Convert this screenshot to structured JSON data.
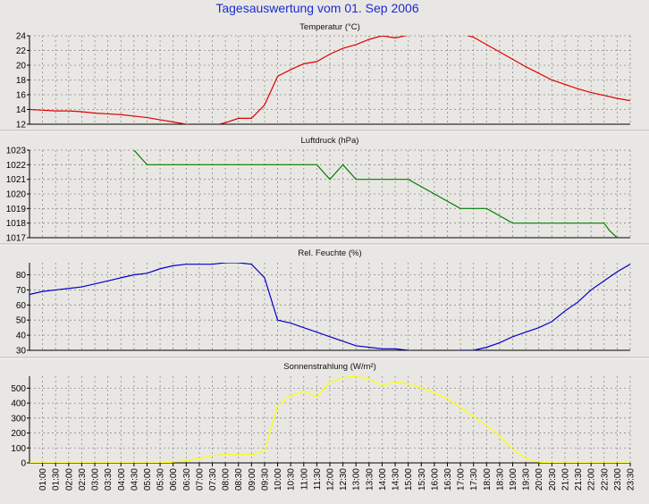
{
  "title": "Tagesauswertung vom 01. Sep 2006",
  "chart_data": [
    {
      "type": "line",
      "title": "Temperatur (°C)",
      "color": "#dd0000",
      "ylim": [
        12,
        24
      ],
      "yticks": [
        12,
        14,
        16,
        18,
        20,
        22,
        24
      ],
      "x": [
        0.0,
        0.5,
        1.0,
        1.5,
        2.0,
        2.5,
        3.0,
        3.5,
        4.0,
        4.5,
        5.0,
        5.5,
        6.0,
        6.5,
        7.0,
        7.5,
        8.0,
        8.5,
        9.0,
        9.5,
        10.0,
        10.5,
        11.0,
        11.5,
        12.0,
        12.5,
        13.0,
        13.5,
        14.0,
        14.5,
        15.0,
        15.5,
        16.0,
        16.5,
        17.0,
        17.5,
        18.0,
        18.5,
        19.0,
        19.5,
        20.0,
        20.5,
        21.0,
        21.5,
        22.0,
        22.5,
        23.0,
        23.5
      ],
      "values": [
        14.1,
        14.0,
        13.9,
        13.8,
        13.8,
        13.7,
        13.5,
        13.4,
        13.3,
        13.1,
        12.9,
        12.6,
        12.3,
        12.0,
        11.8,
        11.8,
        12.2,
        12.8,
        12.8,
        14.6,
        18.5,
        19.4,
        20.2,
        20.5,
        21.5,
        22.3,
        22.8,
        23.5,
        24.0,
        23.7,
        24.1,
        24.6,
        24.3,
        24.3,
        24.3,
        23.8,
        22.8,
        21.8,
        20.8,
        19.8,
        18.9,
        18.0,
        17.4,
        16.8,
        16.3,
        15.9,
        15.5,
        15.2
      ]
    },
    {
      "type": "line",
      "title": "Luftdruck (hPa)",
      "color": "#008000",
      "ylim": [
        1017,
        1023
      ],
      "yticks": [
        1017,
        1018,
        1019,
        1020,
        1021,
        1022,
        1023
      ],
      "x": [
        4.5,
        5.0,
        6.0,
        7.0,
        8.0,
        9.0,
        10.0,
        11.0,
        11.5,
        12.0,
        12.5,
        13.0,
        13.5,
        14.0,
        14.5,
        15.0,
        16.0,
        17.0,
        17.5,
        18.0,
        19.0,
        20.0,
        21.0,
        22.0,
        22.5,
        22.7,
        23.0
      ],
      "values": [
        1023,
        1022,
        1022,
        1022,
        1022,
        1022,
        1022,
        1022,
        1022,
        1021,
        1022,
        1021,
        1021,
        1021,
        1021,
        1021,
        1020,
        1019,
        1019,
        1019,
        1018,
        1018,
        1018,
        1018,
        1018,
        1017.5,
        1017
      ]
    },
    {
      "type": "line",
      "title": "Rel. Feuchte (%)",
      "color": "#0000cc",
      "ylim": [
        30,
        88
      ],
      "yticks": [
        30,
        40,
        50,
        60,
        70,
        80
      ],
      "x": [
        0.0,
        0.5,
        1.0,
        1.5,
        2.0,
        2.5,
        3.0,
        3.5,
        4.0,
        4.5,
        5.0,
        5.5,
        6.0,
        6.5,
        7.0,
        7.5,
        8.0,
        8.5,
        9.0,
        9.5,
        10.0,
        10.5,
        11.0,
        11.5,
        12.0,
        12.5,
        13.0,
        13.5,
        14.0,
        14.5,
        15.0,
        15.5,
        16.0,
        16.5,
        17.0,
        17.5,
        18.0,
        18.5,
        19.0,
        19.5,
        20.0,
        20.5,
        21.0,
        21.5,
        22.0,
        22.5,
        23.0,
        23.5
      ],
      "values": [
        65,
        67,
        69,
        70,
        71,
        72,
        74,
        76,
        78,
        80,
        81,
        84,
        86,
        87,
        87,
        87,
        88,
        88,
        87,
        78,
        50,
        48,
        45,
        42,
        39,
        36,
        33,
        32,
        31,
        31,
        30,
        29,
        29,
        29,
        30,
        30,
        32,
        35,
        39,
        42,
        45,
        49,
        56,
        62,
        70,
        76,
        82,
        87
      ]
    },
    {
      "type": "line",
      "title": "Sonnenstrahlung (W/m²)",
      "color": "#ffff00",
      "ylim": [
        0,
        580
      ],
      "yticks": [
        0,
        100,
        200,
        300,
        400,
        500
      ],
      "x": [
        0.0,
        0.5,
        1.0,
        1.5,
        2.0,
        2.5,
        3.0,
        3.5,
        4.0,
        4.5,
        5.0,
        5.5,
        6.0,
        6.5,
        7.0,
        7.5,
        8.0,
        8.5,
        9.0,
        9.5,
        10.0,
        10.5,
        11.0,
        11.5,
        12.0,
        12.5,
        13.0,
        13.5,
        14.0,
        14.5,
        15.0,
        15.5,
        16.0,
        16.5,
        17.0,
        17.5,
        18.0,
        18.5,
        19.0,
        19.5,
        20.0,
        20.5,
        21.0,
        21.5,
        22.0,
        22.5,
        23.0,
        23.5
      ],
      "values": [
        0,
        0,
        0,
        0,
        0,
        0,
        0,
        0,
        0,
        0,
        0,
        0,
        5,
        15,
        30,
        50,
        55,
        55,
        55,
        80,
        380,
        450,
        480,
        440,
        540,
        570,
        580,
        560,
        520,
        540,
        530,
        500,
        470,
        430,
        370,
        310,
        250,
        180,
        90,
        30,
        5,
        0,
        0,
        0,
        0,
        0,
        0,
        0
      ]
    }
  ],
  "x_tick_labels": [
    "01:00",
    "01:30",
    "02:00",
    "02:30",
    "03:00",
    "03:30",
    "04:00",
    "04:30",
    "05:00",
    "05:30",
    "06:00",
    "06:30",
    "07:00",
    "07:30",
    "08:00",
    "08:30",
    "09:00",
    "09:30",
    "10:00",
    "10:30",
    "11:00",
    "11:30",
    "12:00",
    "12:30",
    "13:00",
    "13:30",
    "14:00",
    "14:30",
    "15:00",
    "15:30",
    "16:00",
    "16:30",
    "17:00",
    "17:30",
    "18:00",
    "18:30",
    "19:00",
    "19:30",
    "20:00",
    "20:30",
    "21:00",
    "21:30",
    "22:00",
    "22:30",
    "23:00",
    "23:30"
  ]
}
